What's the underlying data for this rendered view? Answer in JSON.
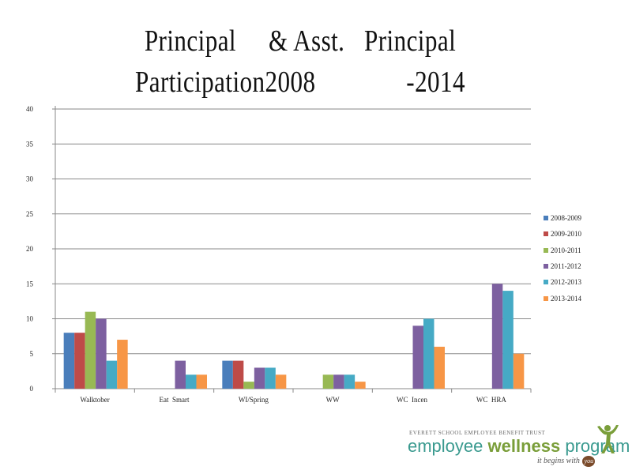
{
  "title": {
    "line1": "Principal     & Asst.   Principal",
    "line2": "Participation2008              -2014"
  },
  "chart_data": {
    "type": "bar",
    "title": "Principal & Asst. Principal Participation2008 -2014",
    "categories": [
      "Walktober",
      "Eat  Smart",
      "WI/Spring",
      "WW",
      "WC  Incen",
      "WC  HRA"
    ],
    "ylim": [
      0,
      40
    ],
    "yticks": [
      0,
      5,
      10,
      15,
      20,
      25,
      30,
      35,
      40
    ],
    "grid": true,
    "legend_position": "right",
    "series": [
      {
        "name": "2008-2009",
        "color": "#4a7ebb",
        "values": [
          8,
          0,
          4,
          0,
          0,
          0
        ]
      },
      {
        "name": "2009-2010",
        "color": "#be4b48",
        "values": [
          8,
          0,
          4,
          0,
          0,
          0
        ]
      },
      {
        "name": "2010-2011",
        "color": "#98b954",
        "values": [
          11,
          0,
          1,
          2,
          0,
          0
        ]
      },
      {
        "name": "2011-2012",
        "color": "#7d60a0",
        "values": [
          10,
          4,
          3,
          2,
          9,
          15
        ]
      },
      {
        "name": "2012-2013",
        "color": "#46aac5",
        "values": [
          4,
          2,
          3,
          2,
          10,
          14
        ]
      },
      {
        "name": "2013-2014",
        "color": "#f79646",
        "values": [
          7,
          2,
          2,
          1,
          6,
          5
        ]
      }
    ]
  },
  "logo": {
    "org": "EVERETT SCHOOL EMPLOYEE BENEFIT TRUST",
    "name_part1": "employee ",
    "name_part2": "wellness",
    "name_part3": " program",
    "tagline": "it begins with",
    "tagline_badge": "you",
    "icon": "person-figure-icon"
  }
}
